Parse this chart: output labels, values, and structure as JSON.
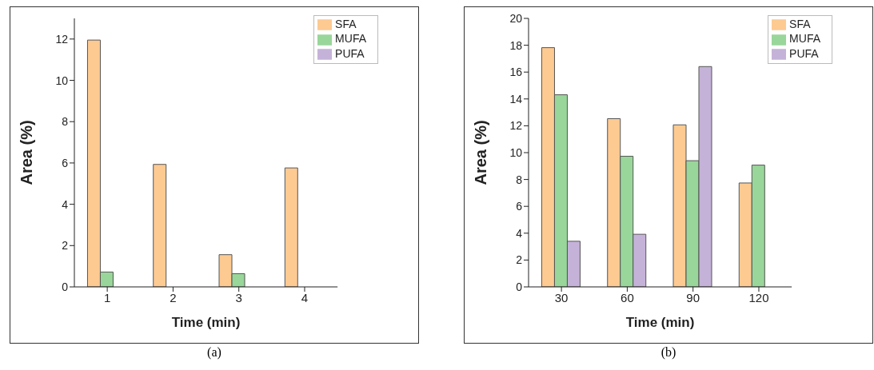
{
  "chart_data": [
    {
      "type": "bar",
      "categories": [
        "1",
        "2",
        "3",
        "4"
      ],
      "xlabel": "Time (min)",
      "ylabel": "Area (%)",
      "ylim": [
        0,
        13
      ],
      "yticks": [
        0,
        2,
        4,
        6,
        8,
        10,
        12
      ],
      "legend": "top right",
      "grid": false,
      "series": [
        {
          "name": "SFA",
          "color": "#fdca92",
          "values": [
            11.95,
            5.93,
            1.56,
            5.76
          ]
        },
        {
          "name": "MUFA",
          "color": "#99d69a",
          "values": [
            0.72,
            0,
            0.64,
            0
          ]
        },
        {
          "name": "PUFA",
          "color": "#c5b2d8",
          "values": [
            0,
            0,
            0,
            0
          ]
        }
      ],
      "annotations": [
        "(a)"
      ]
    },
    {
      "type": "bar",
      "categories": [
        "30",
        "60",
        "90",
        "120"
      ],
      "xlabel": "Time (min)",
      "ylabel": "Area (%)",
      "ylim": [
        0,
        20
      ],
      "yticks": [
        0,
        2,
        4,
        6,
        8,
        10,
        12,
        14,
        16,
        18,
        20
      ],
      "legend": "top right",
      "grid": false,
      "series": [
        {
          "name": "SFA",
          "color": "#fdca92",
          "values": [
            17.82,
            12.53,
            12.07,
            7.74
          ]
        },
        {
          "name": "MUFA",
          "color": "#99d69a",
          "values": [
            14.31,
            9.73,
            9.4,
            9.07
          ]
        },
        {
          "name": "PUFA",
          "color": "#c5b2d8",
          "values": [
            3.4,
            3.92,
            16.41,
            0
          ]
        }
      ],
      "annotations": [
        "(b)"
      ]
    }
  ]
}
